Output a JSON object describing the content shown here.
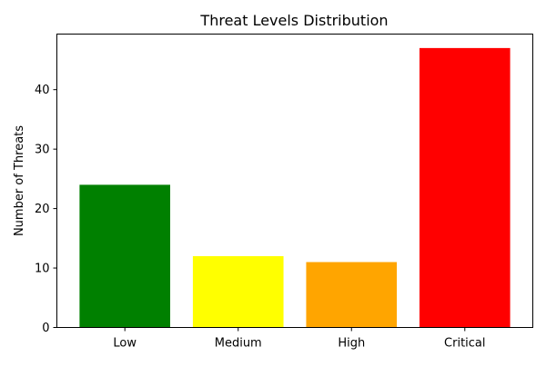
{
  "chart_data": {
    "type": "bar",
    "title": "Threat Levels Distribution",
    "xlabel": "",
    "ylabel": "Number of Threats",
    "categories": [
      "Low",
      "Medium",
      "High",
      "Critical"
    ],
    "values": [
      24,
      12,
      11,
      47
    ],
    "colors": [
      "#008000",
      "#ffff00",
      "#ffa500",
      "#ff0000"
    ],
    "ylim": [
      0,
      49.35
    ],
    "yticks": [
      0,
      10,
      20,
      30,
      40
    ],
    "grid": false,
    "legend": "none"
  }
}
